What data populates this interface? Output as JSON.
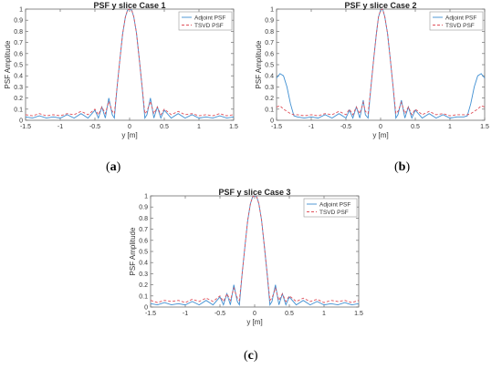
{
  "chart_data": [
    {
      "type": "line",
      "title": "PSF y slice Case 1",
      "xlabel": "y [m]",
      "ylabel": "PSF Amplitude",
      "xlim": [
        -1.5,
        1.5
      ],
      "ylim": [
        0,
        1
      ],
      "xticks": [
        "-1.5",
        "-1",
        "-0.5",
        "0",
        "0.5",
        "1",
        "1.5"
      ],
      "yticks": [
        "0",
        "0.1",
        "0.2",
        "0.3",
        "0.4",
        "0.5",
        "0.6",
        "0.7",
        "0.8",
        "0.9",
        "1"
      ],
      "legend_placement": "top-right",
      "grid": false,
      "series": [
        {
          "name": "Adjoint PSF",
          "color": "#3f8fd2",
          "style": "solid",
          "x": [
            -1.5,
            -1.4,
            -1.3,
            -1.2,
            -1.1,
            -1.0,
            -0.9,
            -0.8,
            -0.7,
            -0.6,
            -0.5,
            -0.45,
            -0.4,
            -0.35,
            -0.3,
            -0.25,
            -0.22,
            -0.18,
            -0.14,
            -0.1,
            -0.06,
            -0.03,
            0,
            0.03,
            0.06,
            0.1,
            0.14,
            0.18,
            0.22,
            0.25,
            0.3,
            0.35,
            0.4,
            0.45,
            0.5,
            0.6,
            0.7,
            0.8,
            0.9,
            1.0,
            1.1,
            1.2,
            1.3,
            1.4,
            1.5
          ],
          "y": [
            0.03,
            0.02,
            0.04,
            0.02,
            0.03,
            0.02,
            0.05,
            0.02,
            0.06,
            0.02,
            0.09,
            0.02,
            0.12,
            0.02,
            0.2,
            0.05,
            0.02,
            0.3,
            0.55,
            0.78,
            0.93,
            0.99,
            1.0,
            0.99,
            0.93,
            0.78,
            0.55,
            0.3,
            0.02,
            0.05,
            0.2,
            0.02,
            0.12,
            0.02,
            0.09,
            0.02,
            0.06,
            0.02,
            0.05,
            0.02,
            0.03,
            0.02,
            0.04,
            0.02,
            0.03
          ]
        },
        {
          "name": "TSVD PSF",
          "color": "#e0505a",
          "style": "dashed",
          "x": [
            -1.5,
            -1.4,
            -1.3,
            -1.2,
            -1.1,
            -1.0,
            -0.9,
            -0.8,
            -0.7,
            -0.6,
            -0.5,
            -0.45,
            -0.4,
            -0.35,
            -0.3,
            -0.25,
            -0.22,
            -0.18,
            -0.14,
            -0.1,
            -0.06,
            -0.03,
            0,
            0.03,
            0.06,
            0.1,
            0.14,
            0.18,
            0.22,
            0.25,
            0.3,
            0.35,
            0.4,
            0.45,
            0.5,
            0.6,
            0.7,
            0.8,
            0.9,
            1.0,
            1.1,
            1.2,
            1.3,
            1.4,
            1.5
          ],
          "y": [
            0.05,
            0.04,
            0.06,
            0.04,
            0.05,
            0.04,
            0.06,
            0.05,
            0.08,
            0.05,
            0.1,
            0.05,
            0.12,
            0.06,
            0.17,
            0.08,
            0.06,
            0.3,
            0.55,
            0.78,
            0.93,
            0.99,
            1.0,
            0.99,
            0.93,
            0.78,
            0.55,
            0.3,
            0.06,
            0.08,
            0.17,
            0.06,
            0.12,
            0.05,
            0.1,
            0.05,
            0.08,
            0.05,
            0.06,
            0.04,
            0.05,
            0.04,
            0.06,
            0.04,
            0.05
          ]
        }
      ]
    },
    {
      "type": "line",
      "title": "PSF y slice Case 2",
      "xlabel": "y [m]",
      "ylabel": "PSF Amplitude",
      "xlim": [
        -1.5,
        1.5
      ],
      "ylim": [
        0,
        1
      ],
      "xticks": [
        "-1.5",
        "-1",
        "-0.5",
        "0",
        "0.5",
        "1",
        "1.5"
      ],
      "yticks": [
        "0",
        "0.1",
        "0.2",
        "0.3",
        "0.4",
        "0.5",
        "0.6",
        "0.7",
        "0.8",
        "0.9",
        "1"
      ],
      "legend_placement": "top-right",
      "grid": false,
      "series": [
        {
          "name": "Adjoint PSF",
          "color": "#3f8fd2",
          "style": "solid",
          "x": [
            -1.5,
            -1.45,
            -1.4,
            -1.35,
            -1.3,
            -1.25,
            -1.2,
            -1.1,
            -1.0,
            -0.9,
            -0.8,
            -0.7,
            -0.6,
            -0.5,
            -0.45,
            -0.4,
            -0.35,
            -0.3,
            -0.25,
            -0.22,
            -0.18,
            -0.14,
            -0.1,
            -0.06,
            -0.03,
            0,
            0.03,
            0.06,
            0.1,
            0.14,
            0.18,
            0.22,
            0.25,
            0.3,
            0.35,
            0.4,
            0.45,
            0.5,
            0.6,
            0.7,
            0.8,
            0.9,
            1.0,
            1.1,
            1.2,
            1.25,
            1.3,
            1.35,
            1.4,
            1.45,
            1.5
          ],
          "y": [
            0.38,
            0.42,
            0.4,
            0.3,
            0.15,
            0.04,
            0.03,
            0.02,
            0.03,
            0.02,
            0.05,
            0.02,
            0.06,
            0.02,
            0.09,
            0.02,
            0.12,
            0.02,
            0.18,
            0.05,
            0.02,
            0.3,
            0.55,
            0.78,
            0.93,
            0.99,
            1.0,
            0.93,
            0.78,
            0.55,
            0.3,
            0.02,
            0.05,
            0.18,
            0.02,
            0.12,
            0.02,
            0.09,
            0.02,
            0.06,
            0.02,
            0.05,
            0.02,
            0.03,
            0.03,
            0.04,
            0.15,
            0.3,
            0.4,
            0.42,
            0.38
          ]
        },
        {
          "name": "TSVD PSF",
          "color": "#e0505a",
          "style": "dashed",
          "x": [
            -1.5,
            -1.45,
            -1.4,
            -1.35,
            -1.3,
            -1.25,
            -1.2,
            -1.1,
            -1.0,
            -0.9,
            -0.8,
            -0.7,
            -0.6,
            -0.5,
            -0.45,
            -0.4,
            -0.35,
            -0.3,
            -0.25,
            -0.22,
            -0.18,
            -0.14,
            -0.1,
            -0.06,
            -0.03,
            0,
            0.03,
            0.06,
            0.1,
            0.14,
            0.18,
            0.22,
            0.25,
            0.3,
            0.35,
            0.4,
            0.45,
            0.5,
            0.6,
            0.7,
            0.8,
            0.9,
            1.0,
            1.1,
            1.2,
            1.25,
            1.3,
            1.35,
            1.4,
            1.45,
            1.5
          ],
          "y": [
            0.12,
            0.13,
            0.1,
            0.08,
            0.06,
            0.05,
            0.05,
            0.04,
            0.05,
            0.04,
            0.06,
            0.05,
            0.08,
            0.05,
            0.1,
            0.05,
            0.12,
            0.06,
            0.16,
            0.08,
            0.06,
            0.3,
            0.55,
            0.78,
            0.93,
            0.99,
            1.0,
            0.93,
            0.78,
            0.55,
            0.3,
            0.06,
            0.08,
            0.16,
            0.06,
            0.12,
            0.05,
            0.1,
            0.05,
            0.08,
            0.05,
            0.06,
            0.04,
            0.05,
            0.05,
            0.05,
            0.06,
            0.08,
            0.1,
            0.13,
            0.12
          ]
        }
      ]
    },
    {
      "type": "line",
      "title": "PSF y slice Case 3",
      "xlabel": "y [m]",
      "ylabel": "PSF Amplitude",
      "xlim": [
        -1.5,
        1.5
      ],
      "ylim": [
        0,
        1
      ],
      "xticks": [
        "-1.5",
        "-1",
        "-0.5",
        "0",
        "0.5",
        "1",
        "1.5"
      ],
      "yticks": [
        "0",
        "0.1",
        "0.2",
        "0.3",
        "0.4",
        "0.5",
        "0.6",
        "0.7",
        "0.8",
        "0.9",
        "1"
      ],
      "legend_placement": "top-right",
      "grid": false,
      "series": [
        {
          "name": "Adjoint PSF",
          "color": "#3f8fd2",
          "style": "solid",
          "x": [
            -1.5,
            -1.4,
            -1.3,
            -1.2,
            -1.1,
            -1.0,
            -0.9,
            -0.8,
            -0.7,
            -0.6,
            -0.5,
            -0.45,
            -0.4,
            -0.35,
            -0.3,
            -0.25,
            -0.22,
            -0.18,
            -0.14,
            -0.1,
            -0.06,
            -0.03,
            0,
            0.03,
            0.06,
            0.1,
            0.14,
            0.18,
            0.22,
            0.25,
            0.3,
            0.35,
            0.4,
            0.45,
            0.5,
            0.6,
            0.7,
            0.8,
            0.9,
            1.0,
            1.1,
            1.2,
            1.3,
            1.4,
            1.5
          ],
          "y": [
            0.03,
            0.02,
            0.04,
            0.02,
            0.03,
            0.02,
            0.05,
            0.02,
            0.06,
            0.02,
            0.09,
            0.02,
            0.12,
            0.02,
            0.2,
            0.05,
            0.02,
            0.3,
            0.55,
            0.78,
            0.93,
            0.99,
            1.0,
            0.99,
            0.93,
            0.78,
            0.55,
            0.3,
            0.02,
            0.05,
            0.2,
            0.02,
            0.12,
            0.02,
            0.09,
            0.02,
            0.06,
            0.02,
            0.05,
            0.02,
            0.03,
            0.02,
            0.04,
            0.02,
            0.03
          ]
        },
        {
          "name": "TSVD PSF",
          "color": "#e0505a",
          "style": "dashed",
          "x": [
            -1.5,
            -1.4,
            -1.3,
            -1.2,
            -1.1,
            -1.0,
            -0.9,
            -0.8,
            -0.7,
            -0.6,
            -0.5,
            -0.45,
            -0.4,
            -0.35,
            -0.3,
            -0.25,
            -0.22,
            -0.18,
            -0.14,
            -0.1,
            -0.06,
            -0.03,
            0,
            0.03,
            0.06,
            0.1,
            0.14,
            0.18,
            0.22,
            0.25,
            0.3,
            0.35,
            0.4,
            0.45,
            0.5,
            0.6,
            0.7,
            0.8,
            0.9,
            1.0,
            1.1,
            1.2,
            1.3,
            1.4,
            1.5
          ],
          "y": [
            0.06,
            0.04,
            0.06,
            0.05,
            0.06,
            0.04,
            0.07,
            0.05,
            0.08,
            0.05,
            0.1,
            0.05,
            0.12,
            0.06,
            0.17,
            0.08,
            0.06,
            0.3,
            0.55,
            0.78,
            0.93,
            0.99,
            1.0,
            0.99,
            0.93,
            0.78,
            0.55,
            0.3,
            0.06,
            0.08,
            0.17,
            0.06,
            0.12,
            0.05,
            0.1,
            0.05,
            0.08,
            0.05,
            0.07,
            0.04,
            0.06,
            0.05,
            0.06,
            0.04,
            0.06
          ]
        }
      ]
    }
  ],
  "captions": [
    {
      "open": "(",
      "letter": "a",
      "close": ")"
    },
    {
      "open": "(",
      "letter": "b",
      "close": ")"
    },
    {
      "open": "(",
      "letter": "c",
      "close": ")"
    }
  ]
}
